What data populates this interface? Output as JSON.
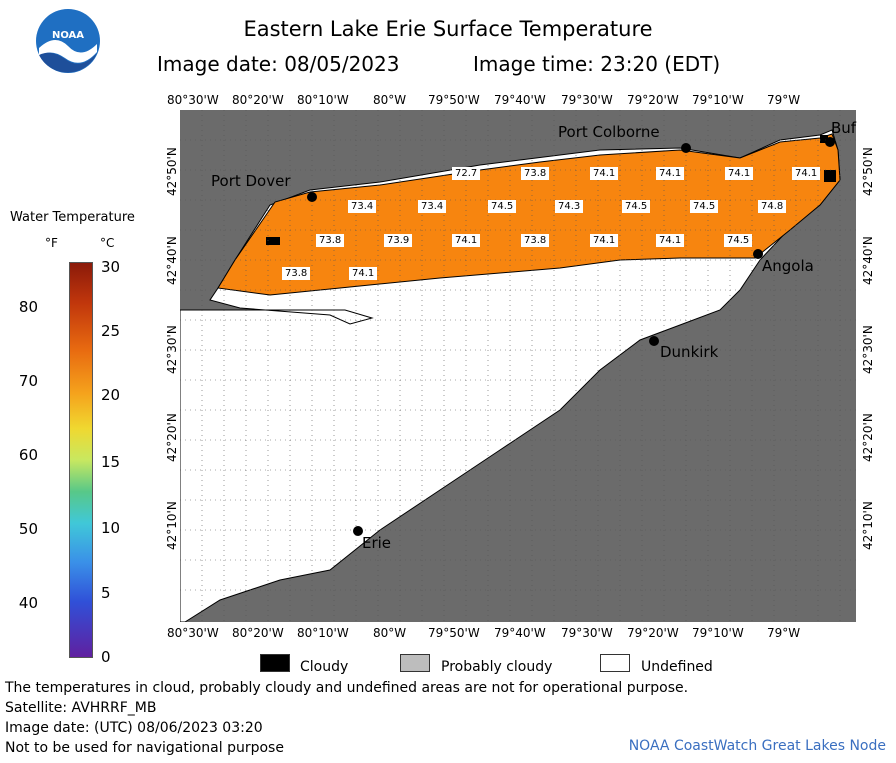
{
  "title": "Eastern Lake Erie Surface Temperature",
  "image_date_label": "Image date: 08/05/2023",
  "image_time_label": "Image time: 23:20 (EDT)",
  "logo_text": "NOAA",
  "legend": {
    "title": "Water Temperature",
    "unit_f": "°F",
    "unit_c": "°C",
    "f_labels": [
      "80",
      "70",
      "60",
      "50",
      "40"
    ],
    "c_labels": [
      "30",
      "25",
      "20",
      "15",
      "10",
      "5",
      "0"
    ]
  },
  "axes": {
    "lon_labels": [
      "80°30'W",
      "80°20'W",
      "80°10'W",
      "80°W",
      "79°50'W",
      "79°40'W",
      "79°30'W",
      "79°20'W",
      "79°10'W",
      "79°W"
    ],
    "lat_labels": [
      "42°50'N",
      "42°40'N",
      "42°30'N",
      "42°20'N",
      "42°10'N"
    ]
  },
  "cities": [
    {
      "name": "Port Colborne"
    },
    {
      "name": "Port Dover"
    },
    {
      "name": "Angola"
    },
    {
      "name": "Dunkirk"
    },
    {
      "name": "Erie"
    },
    {
      "name": "Buf"
    }
  ],
  "temperature_readings": [
    "72.7",
    "73.8",
    "74.1",
    "74.1",
    "74.1",
    "74.1",
    "73.4",
    "73.4",
    "74.5",
    "74.3",
    "74.5",
    "74.5",
    "74.8",
    "73.8",
    "73.9",
    "74.1",
    "73.8",
    "74.1",
    "74.1",
    "74.5",
    "73.8",
    "74.1"
  ],
  "key": {
    "cloudy": "Cloudy",
    "probably_cloudy": "Probably cloudy",
    "undefined": "Undefined"
  },
  "colors": {
    "land": "#6b6b6b",
    "water_warm": "#f7850f",
    "undefined": "#ffffff",
    "cloudy": "#000000",
    "probably_cloudy": "#bdbdbd",
    "credit": "#3a6fc0"
  },
  "footer": {
    "disclaimer": "The temperatures in cloud, probably cloudy and undefined areas are not for operational purpose.",
    "satellite": "Satellite: AVHRRF_MB",
    "utc_date": "Image date: (UTC) 08/06/2023  03:20",
    "nav_warning": "Not to be used for navigational purpose",
    "credit": "NOAA CoastWatch Great Lakes Node"
  }
}
